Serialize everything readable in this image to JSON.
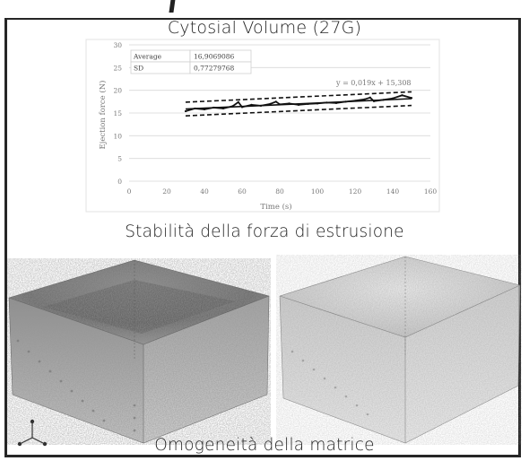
{
  "headings": {
    "chart_title": "Cytosial Volume (27G)",
    "caption_top": "Stabilità della forza di estrusione",
    "caption_bottom": "Omogeneità della matrice"
  },
  "stats_table": {
    "rows": [
      {
        "label": "Average",
        "value": "16,9069086"
      },
      {
        "label": "SD",
        "value": "0,77279768"
      }
    ]
  },
  "chart_data": {
    "type": "line",
    "title": "Cytosial Volume (27G)",
    "xlabel": "Time (s)",
    "ylabel": "Ejection force (N)",
    "xlim": [
      0,
      160
    ],
    "ylim": [
      0,
      30
    ],
    "x_ticks": [
      0,
      20,
      40,
      60,
      80,
      100,
      120,
      140,
      160
    ],
    "y_ticks": [
      0,
      5,
      10,
      15,
      20,
      25,
      30
    ],
    "grid": true,
    "trendline_equation": "y = 0,019x + 15,308",
    "trendline": {
      "slope": 0.019,
      "intercept": 15.308
    },
    "band_offset": 1.5,
    "series": [
      {
        "x": [
          30,
          35,
          40,
          45,
          50,
          55,
          58,
          60,
          65,
          70,
          75,
          78,
          80,
          85,
          90,
          95,
          100,
          105,
          110,
          115,
          120,
          125,
          128,
          130,
          135,
          140,
          145,
          150
        ],
        "values": [
          15.4,
          16.0,
          15.8,
          16.2,
          16.0,
          16.5,
          17.4,
          16.3,
          16.8,
          16.6,
          17.0,
          17.5,
          16.9,
          17.1,
          16.8,
          17.0,
          17.1,
          17.3,
          17.2,
          17.5,
          17.7,
          18.0,
          18.4,
          17.6,
          17.9,
          18.2,
          18.9,
          18.3
        ]
      }
    ],
    "colors": {
      "line": "#111111",
      "grid": "#d9d9d9",
      "axis_text": "#777777"
    }
  },
  "images": {
    "left_volume": "3d-scan-volume-dense",
    "right_volume": "3d-scan-volume-light",
    "axis_triad": "xyz-axis-triad-icon"
  }
}
